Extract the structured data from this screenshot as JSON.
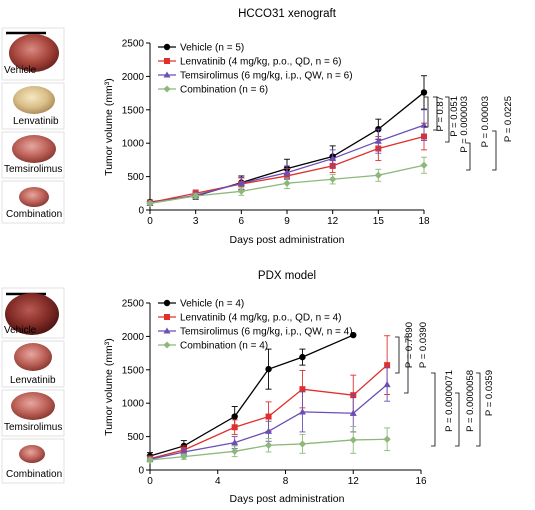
{
  "colors": {
    "vehicle": "#000000",
    "lenvatinib": "#e0302e",
    "temsirolimus": "#6a4fb5",
    "combination": "#8db87a"
  },
  "chart_data": [
    {
      "type": "line",
      "title": "HCCO31 xenograft",
      "xlabel": "Days post administration",
      "ylabel": "Tumor volume (mm³)",
      "xlim": [
        0,
        18
      ],
      "ylim": [
        0,
        2500
      ],
      "xticks": [
        0,
        3,
        6,
        9,
        12,
        15,
        18
      ],
      "yticks": [
        0,
        500,
        1000,
        1500,
        2000,
        2500
      ],
      "legend_position": "top-left",
      "x": [
        0,
        3,
        6,
        9,
        12,
        15,
        18
      ],
      "series": [
        {
          "name": "Vehicle (n = 5)",
          "color_key": "vehicle",
          "marker": "circle",
          "values": [
            120,
            210,
            410,
            620,
            800,
            1210,
            1760
          ],
          "errors": [
            30,
            50,
            100,
            140,
            160,
            150,
            250
          ]
        },
        {
          "name": "Lenvatinib (4 mg/kg, p.o., QD, n = 6)",
          "color_key": "lenvatinib",
          "marker": "square",
          "values": [
            110,
            250,
            390,
            510,
            660,
            920,
            1100
          ],
          "errors": [
            30,
            50,
            90,
            110,
            100,
            180,
            200
          ]
        },
        {
          "name": "Temsirolimus (6 mg/kg, i.p., QW, n = 6)",
          "color_key": "temsirolimus",
          "marker": "triangle",
          "values": [
            100,
            220,
            400,
            560,
            770,
            1030,
            1270
          ],
          "errors": [
            30,
            50,
            90,
            100,
            130,
            180,
            230
          ]
        },
        {
          "name": "Combination (n = 6)",
          "color_key": "combination",
          "marker": "diamond",
          "values": [
            100,
            210,
            280,
            400,
            460,
            520,
            670
          ],
          "errors": [
            20,
            40,
            60,
            80,
            70,
            90,
            120
          ]
        }
      ],
      "annotations": [
        "P = 0.87",
        "P = 0.051",
        "P = 0.000003",
        "P = 0.00003",
        "P = 0.0225"
      ]
    },
    {
      "type": "line",
      "title": "PDX model",
      "xlabel": "Days post administration",
      "ylabel": "Tumor volume (mm³)",
      "xlim": [
        0,
        16
      ],
      "ylim": [
        0,
        2500
      ],
      "xticks": [
        0,
        4,
        8,
        12,
        16
      ],
      "yticks": [
        0,
        500,
        1000,
        1500,
        2000,
        2500
      ],
      "legend_position": "top-left",
      "series": [
        {
          "name": "Vehicle (n = 4)",
          "color_key": "vehicle",
          "marker": "circle",
          "x": [
            0,
            2,
            5,
            7,
            9,
            12
          ],
          "values": [
            210,
            360,
            800,
            1510,
            1690,
            2020
          ],
          "errors": [
            50,
            80,
            150,
            300,
            120,
            0
          ]
        },
        {
          "name": "Lenvatinib (4 mg/kg, p.o., QD, n = 4)",
          "color_key": "lenvatinib",
          "marker": "square",
          "x": [
            0,
            2,
            5,
            7,
            9,
            12,
            14
          ],
          "values": [
            170,
            300,
            640,
            800,
            1210,
            1120,
            1570
          ],
          "errors": [
            40,
            60,
            110,
            220,
            280,
            300,
            440
          ]
        },
        {
          "name": "Temsirolimus (6 mg/kg, i.p., QW, n = 4)",
          "color_key": "temsirolimus",
          "marker": "triangle",
          "x": [
            0,
            2,
            5,
            7,
            9,
            12,
            14
          ],
          "values": [
            160,
            270,
            410,
            580,
            870,
            850,
            1280
          ],
          "errors": [
            30,
            50,
            90,
            150,
            300,
            280,
            250
          ]
        },
        {
          "name": "Combination (n = 4)",
          "color_key": "combination",
          "marker": "diamond",
          "x": [
            0,
            2,
            5,
            7,
            9,
            12,
            14
          ],
          "values": [
            150,
            200,
            280,
            370,
            390,
            450,
            460
          ],
          "errors": [
            30,
            40,
            80,
            100,
            140,
            200,
            170
          ]
        }
      ],
      "annotations": [
        "P = 0.7890",
        "P = 0.0390",
        "P = 0.0000071",
        "P = 0.0000058",
        "P = 0.0359"
      ]
    }
  ],
  "photos": [
    {
      "group": "top",
      "labels": [
        "Vehicle",
        "Lenvatinib",
        "Temsirolimus",
        "Combination"
      ]
    },
    {
      "group": "bottom",
      "labels": [
        "Vehicle",
        "Lenvatinib",
        "Temsirolimus",
        "Combination"
      ]
    }
  ]
}
